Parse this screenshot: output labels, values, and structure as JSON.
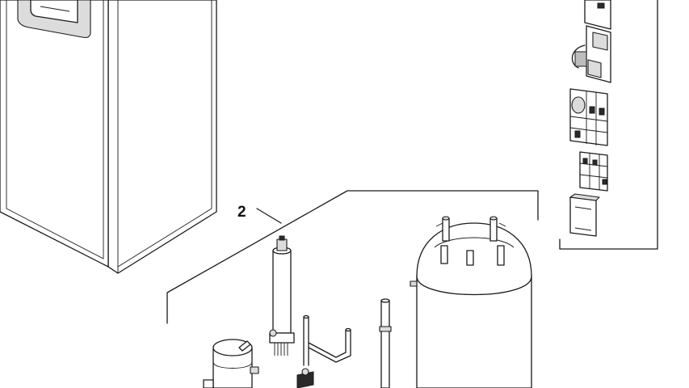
{
  "callouts": {
    "part_2": "2"
  },
  "colors": {
    "line": "#1a1a1a",
    "background": "#ffffff",
    "shade": "#dcdcdc"
  }
}
